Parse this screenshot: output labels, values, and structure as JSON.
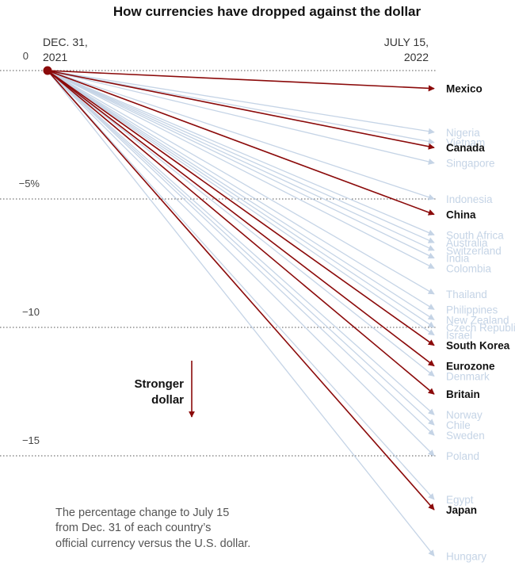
{
  "chart_data": {
    "type": "line",
    "title": "How currencies have dropped against the dollar",
    "start_label": [
      "DEC. 31,",
      "2021"
    ],
    "end_label": [
      "JULY 15,",
      "2022"
    ],
    "y_ticks": [
      {
        "value": 0,
        "label": "0"
      },
      {
        "value": -5,
        "label": "−5%"
      },
      {
        "value": -10,
        "label": "−10"
      },
      {
        "value": -15,
        "label": "−15"
      }
    ],
    "ylim": [
      -19,
      0
    ],
    "direction_label": [
      "Stronger",
      "dollar"
    ],
    "note": [
      "The percentage change to July 15",
      "from Dec. 31 of each country’s",
      "official currency versus the U.S. dollar."
    ],
    "highlight_color": "#8b0a0a",
    "muted_color": "#c5d4e6",
    "series": [
      {
        "name": "Mexico",
        "value": -0.7,
        "highlight": true
      },
      {
        "name": "Nigeria",
        "value": -2.4,
        "highlight": false
      },
      {
        "name": "Vietnam",
        "value": -2.8,
        "highlight": false
      },
      {
        "name": "Canada",
        "value": -3.0,
        "highlight": true
      },
      {
        "name": "Singapore",
        "value": -3.6,
        "highlight": false
      },
      {
        "name": "Indonesia",
        "value": -5.0,
        "highlight": false
      },
      {
        "name": "China",
        "value": -5.6,
        "highlight": true
      },
      {
        "name": "South Africa",
        "value": -6.4,
        "highlight": false
      },
      {
        "name": "Australia",
        "value": -6.7,
        "highlight": false
      },
      {
        "name": "Switzerland",
        "value": -7.0,
        "highlight": false
      },
      {
        "name": "India",
        "value": -7.3,
        "highlight": false
      },
      {
        "name": "Colombia",
        "value": -7.7,
        "highlight": false
      },
      {
        "name": "Thailand",
        "value": -8.7,
        "highlight": false
      },
      {
        "name": "Philippines",
        "value": -9.3,
        "highlight": false
      },
      {
        "name": "New Zealand",
        "value": -9.7,
        "highlight": false
      },
      {
        "name": "Czech Republic",
        "value": -10.0,
        "highlight": false
      },
      {
        "name": "Israel",
        "value": -10.3,
        "highlight": false
      },
      {
        "name": "South Korea",
        "value": -10.7,
        "highlight": true
      },
      {
        "name": "Eurozone",
        "value": -11.5,
        "highlight": true
      },
      {
        "name": "Denmark",
        "value": -11.9,
        "highlight": false
      },
      {
        "name": "Britain",
        "value": -12.6,
        "highlight": true
      },
      {
        "name": "Norway",
        "value": -13.4,
        "highlight": false
      },
      {
        "name": "Chile",
        "value": -13.8,
        "highlight": false
      },
      {
        "name": "Sweden",
        "value": -14.2,
        "highlight": false
      },
      {
        "name": "Poland",
        "value": -15.0,
        "highlight": false
      },
      {
        "name": "Egypt",
        "value": -16.7,
        "highlight": false
      },
      {
        "name": "Japan",
        "value": -17.1,
        "highlight": true
      },
      {
        "name": "Hungary",
        "value": -18.9,
        "highlight": false
      }
    ]
  }
}
